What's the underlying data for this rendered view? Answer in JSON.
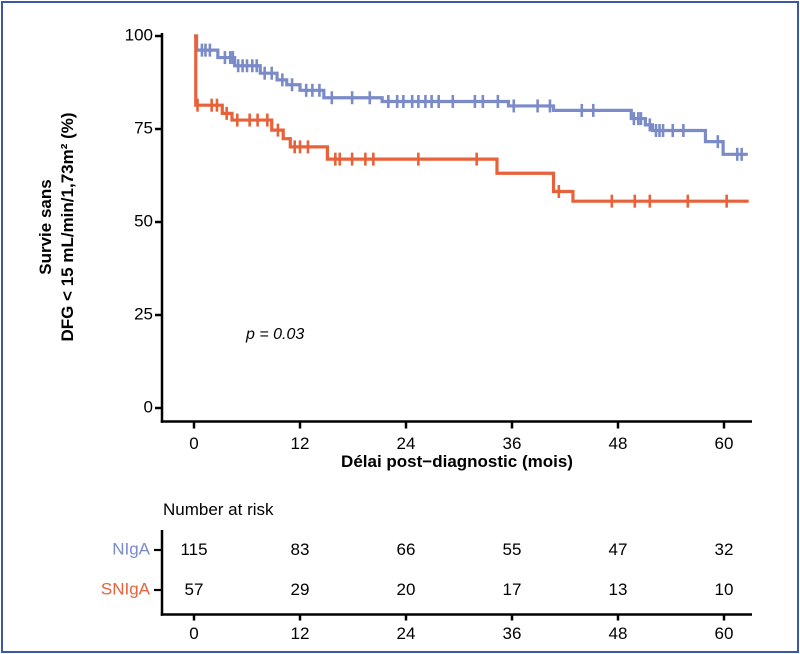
{
  "figure": {
    "border_color": "#3c57a8",
    "background": "#ffffff"
  },
  "chart_data": {
    "type": "line",
    "subtype": "kaplan-meier-survival",
    "title": "",
    "ylabel_line1": "Survie sans",
    "ylabel_line2": "DFG < 15 mL/min/1,73m² (%)",
    "xlabel": "Délai post−diagnostic (mois)",
    "annotation_p": "p = 0.03",
    "xlim": [
      0,
      63
    ],
    "ylim": [
      0,
      100
    ],
    "x_ticks": [
      0,
      12,
      24,
      36,
      48,
      60
    ],
    "y_ticks": [
      0,
      25,
      50,
      75,
      100
    ],
    "grid": false,
    "axis_color": "#000000",
    "series": [
      {
        "name": "NIgA",
        "color": "#7a8bc7",
        "end": 62.7,
        "steps": [
          [
            0,
            100
          ],
          [
            0.3,
            96.2
          ],
          [
            2.7,
            94.2
          ],
          [
            4.6,
            92.0
          ],
          [
            7.5,
            90.0
          ],
          [
            9.4,
            88.2
          ],
          [
            10.5,
            86.9
          ],
          [
            12.0,
            85.4
          ],
          [
            14.7,
            83.4
          ],
          [
            21.3,
            82.4
          ],
          [
            35.6,
            81.2
          ],
          [
            40.7,
            80.0
          ],
          [
            49.5,
            77.8
          ],
          [
            51.1,
            76.1
          ],
          [
            51.9,
            74.6
          ],
          [
            57.9,
            71.6
          ],
          [
            59.9,
            68.2
          ]
        ],
        "censors": [
          0.9,
          1.3,
          1.8,
          3.5,
          4.1,
          4.4,
          5.0,
          5.5,
          6.0,
          6.6,
          7.1,
          8.0,
          8.8,
          10.0,
          11.1,
          12.7,
          13.4,
          14.2,
          15.6,
          17.9,
          19.9,
          22.0,
          23.0,
          23.7,
          24.7,
          25.4,
          26.2,
          26.9,
          27.7,
          29.3,
          31.8,
          32.7,
          34.4,
          36.2,
          38.9,
          40.3,
          43.9,
          45.2,
          49.8,
          50.3,
          50.6,
          51.6,
          52.3,
          52.7,
          53.1,
          54.2,
          55.4,
          59.3,
          61.5,
          62.0
        ]
      },
      {
        "name": "SNIgA",
        "color": "#e7613a",
        "end": 62.8,
        "steps": [
          [
            0,
            100
          ],
          [
            0.2,
            81.4
          ],
          [
            3.2,
            79.2
          ],
          [
            4.3,
            77.4
          ],
          [
            8.8,
            74.7
          ],
          [
            10.1,
            72.4
          ],
          [
            10.9,
            70.2
          ],
          [
            15.1,
            66.9
          ],
          [
            34.3,
            63.1
          ],
          [
            40.7,
            58.2
          ],
          [
            42.9,
            55.6
          ]
        ],
        "censors": [
          0.4,
          2.0,
          2.6,
          3.7,
          4.9,
          6.3,
          7.2,
          8.3,
          9.5,
          11.4,
          12.0,
          12.9,
          16.0,
          16.5,
          17.9,
          19.4,
          20.3,
          25.4,
          32.0,
          41.3,
          47.3,
          49.9,
          51.6,
          55.9,
          60.3
        ]
      }
    ],
    "risk_table": {
      "title": "Number at risk",
      "x_ticks": [
        0,
        12,
        24,
        36,
        48,
        60
      ],
      "rows": [
        {
          "name": "NIgA",
          "color": "#7a8bc7",
          "values": [
            "115",
            "83",
            "66",
            "55",
            "47",
            "32"
          ]
        },
        {
          "name": "SNIgA",
          "color": "#e7613a",
          "values": [
            "57",
            "29",
            "20",
            "17",
            "13",
            "10"
          ]
        }
      ]
    }
  }
}
